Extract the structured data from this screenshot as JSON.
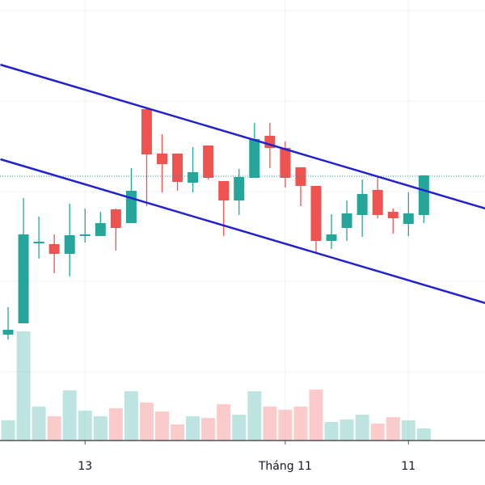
{
  "chart_data": {
    "type": "candlestick",
    "categories": [
      null,
      null,
      null,
      null,
      null,
      "13",
      null,
      null,
      null,
      null,
      null,
      null,
      null,
      null,
      null,
      null,
      null,
      null,
      "Tháng 11",
      null,
      null,
      null,
      null,
      null,
      null,
      null,
      "11",
      null
    ],
    "open": [
      18.6,
      20.0,
      29.9,
      29.8,
      28.6,
      30.8,
      30.8,
      34.1,
      32.4,
      46.5,
      41.0,
      41.0,
      37.4,
      42.0,
      37.6,
      35.2,
      38.0,
      43.2,
      41.7,
      39.3,
      37.0,
      30.2,
      31.8,
      33.4,
      36.5,
      33.8,
      32.3,
      33.4
    ],
    "high": [
      22.0,
      35.5,
      33.2,
      31.0,
      34.8,
      34.2,
      33.8,
      34.2,
      39.2,
      46.7,
      43.4,
      41.0,
      41.8,
      42.0,
      37.6,
      39.1,
      44.8,
      44.8,
      42.5,
      39.3,
      37.0,
      33.5,
      35.2,
      37.8,
      38.2,
      34.2,
      36.2,
      38.3
    ],
    "low": [
      18.0,
      20.0,
      28.0,
      26.2,
      25.8,
      30.0,
      30.8,
      29.0,
      32.4,
      34.5,
      36.2,
      36.4,
      36.2,
      37.8,
      30.8,
      33.4,
      38.0,
      39.2,
      36.8,
      34.5,
      28.6,
      29.2,
      30.2,
      30.7,
      33.0,
      31.1,
      30.8,
      32.4
    ],
    "close": [
      19.2,
      31.0,
      30.1,
      28.6,
      30.9,
      31.0,
      32.4,
      31.8,
      36.4,
      40.9,
      39.7,
      37.5,
      38.7,
      38.0,
      35.2,
      38.1,
      42.8,
      41.7,
      38.0,
      37.0,
      30.2,
      31.0,
      33.6,
      36.0,
      33.4,
      33.0,
      33.6,
      38.3
    ],
    "volume": [
      25,
      135,
      42,
      30,
      62,
      37,
      30,
      40,
      61,
      47,
      36,
      20,
      30,
      28,
      45,
      32,
      61,
      42,
      38,
      42,
      63,
      23,
      26,
      32,
      21,
      29,
      25,
      15
    ],
    "up_color": "#26a69a",
    "down_color": "#ef5350",
    "ylim": [
      5.5,
      60
    ],
    "yticks": [
      58.7,
      47.5,
      36.3,
      25.2,
      14.0
    ],
    "volume_ylim": [
      0,
      150
    ],
    "grid": true,
    "lines": [
      {
        "color": "#2222cc",
        "x": [
          -0.5,
          31
        ],
        "values": [
          52.0,
          34.2
        ]
      },
      {
        "color": "#2222cc",
        "x": [
          -0.5,
          31
        ],
        "values": [
          40.3,
          22.5
        ]
      }
    ],
    "price_line": 38.2,
    "price_line_color": "#26a69a"
  }
}
